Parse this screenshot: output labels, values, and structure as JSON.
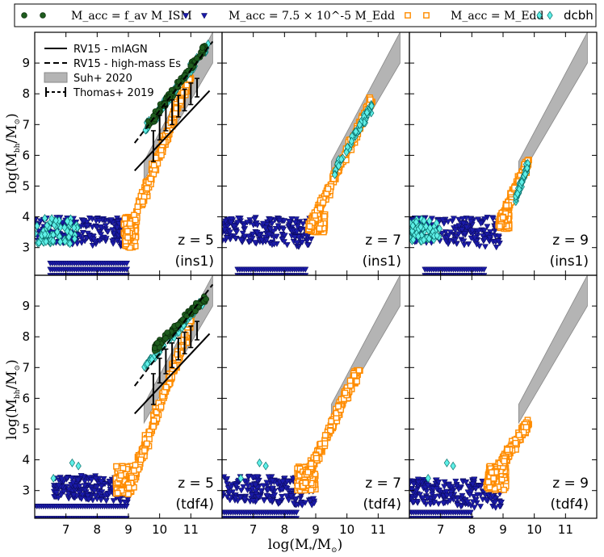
{
  "chart_data": {
    "type": "scatter",
    "layout": "2x3 panels, shared axes",
    "xlabel": "log(M*/M⊙)",
    "ylabel": "log(Mbh/M⊙)",
    "xlim": [
      6,
      12
    ],
    "ylim": [
      2.1,
      10
    ],
    "x_ticks": [
      "7",
      "8",
      "9",
      "10",
      "11"
    ],
    "y_ticks": [
      "3",
      "4",
      "5",
      "6",
      "7",
      "8",
      "9"
    ],
    "top_legend": [
      {
        "label": "M_acc = f_av M_ISM",
        "marker": "circle",
        "color": "#1b5e20"
      },
      {
        "label": "M_acc = 7.5 × 10^-5 M_Edd",
        "marker": "triangle-down",
        "color": "#1a1aa0"
      },
      {
        "label": "M_acc = M_Edd",
        "marker": "open-square",
        "color": "#ff8c00"
      },
      {
        "label": "dcbh",
        "marker": "diamond",
        "color": "#40e0d0"
      }
    ],
    "inner_legend": [
      {
        "label": "RV15 - mIAGN",
        "style": "solid line"
      },
      {
        "label": "RV15 - high-mass Es",
        "style": "dashed line"
      },
      {
        "label": "Suh+ 2020",
        "style": "grey band"
      },
      {
        "label": "Thomas+ 2019",
        "style": "error bars"
      }
    ],
    "reference_relations": {
      "RV15_mIAGN": {
        "x": [
          9.2,
          11.6
        ],
        "y": [
          5.5,
          8.1
        ]
      },
      "RV15_high_mass_Es": {
        "x": [
          9.2,
          11.7
        ],
        "y": [
          6.4,
          9.7
        ]
      },
      "Suh2020_band": {
        "x": [
          9.5,
          11.7
        ],
        "y_low": [
          5.2,
          9.0
        ],
        "y_high": [
          5.8,
          10.0
        ]
      },
      "Thomas2019": [
        {
          "x": 9.8,
          "y": 6.3,
          "err": 0.5
        },
        {
          "x": 10.0,
          "y": 6.9,
          "err": 0.4
        },
        {
          "x": 10.2,
          "y": 7.2,
          "err": 0.4
        },
        {
          "x": 10.4,
          "y": 7.4,
          "err": 0.4
        },
        {
          "x": 10.6,
          "y": 7.6,
          "err": 0.35
        },
        {
          "x": 10.8,
          "y": 7.8,
          "err": 0.35
        },
        {
          "x": 11.0,
          "y": 8.0,
          "err": 0.35
        },
        {
          "x": 11.2,
          "y": 8.2,
          "err": 0.3
        }
      ]
    },
    "panels": [
      {
        "id": "ins1_z5",
        "label_z": "z = 5",
        "label_model": "(ins1)",
        "show_relations": true,
        "show_band": true,
        "edd_slope": {
          "x": [
            8.9,
            11.0
          ],
          "y": [
            3.2,
            8.6
          ]
        },
        "edd_spread": 0.4,
        "bulk": {
          "x": [
            8.85,
            9.25
          ],
          "y": [
            3.0,
            4.0
          ]
        },
        "green_band": {
          "x": [
            9.6,
            11.5
          ],
          "y": [
            6.9,
            9.6
          ]
        },
        "cyan_band": {
          "x": [
            9.5,
            11.6
          ],
          "y": [
            6.8,
            9.6
          ]
        },
        "dcbh_blob": {
          "x": [
            6.0,
            7.4
          ],
          "y": [
            3.1,
            4.0
          ]
        },
        "lowmass_blue": {
          "x": [
            6.0,
            8.9
          ],
          "ymin": 3.0,
          "ymax": 4.0
        },
        "floor_blue": {
          "x": [
            6.5,
            9.0
          ],
          "levels": [
            2.1,
            2.3,
            2.5
          ]
        },
        "dcbh_count": 30
      },
      {
        "id": "ins1_z7",
        "label_z": "z = 7",
        "label_model": "(ins1)",
        "show_relations": false,
        "show_band": true,
        "edd_slope": {
          "x": [
            8.8,
            10.8
          ],
          "y": [
            3.6,
            7.8
          ]
        },
        "edd_spread": 0.3,
        "bulk": {
          "x": [
            8.9,
            9.3
          ],
          "y": [
            3.5,
            4.1
          ]
        },
        "green_band": null,
        "cyan_band": {
          "x": [
            9.6,
            10.8
          ],
          "y": [
            5.5,
            7.6
          ]
        },
        "dcbh_blob": null,
        "lowmass_blue": {
          "x": [
            6.0,
            8.9
          ],
          "ymin": 3.0,
          "ymax": 4.0
        },
        "floor_blue": {
          "x": [
            6.5,
            8.7
          ],
          "levels": [
            2.1,
            2.3
          ]
        },
        "dcbh_count": 10
      },
      {
        "id": "ins1_z9",
        "label_z": "z = 9",
        "label_model": "(ins1)",
        "show_relations": false,
        "show_band": true,
        "edd_slope": {
          "x": [
            8.9,
            9.8
          ],
          "y": [
            3.8,
            5.8
          ]
        },
        "edd_spread": 0.25,
        "bulk": {
          "x": [
            8.9,
            9.2
          ],
          "y": [
            3.6,
            4.1
          ]
        },
        "green_band": null,
        "cyan_band": {
          "x": [
            9.4,
            9.8
          ],
          "y": [
            4.6,
            5.7
          ]
        },
        "dcbh_blob": {
          "x": [
            6.0,
            7.0
          ],
          "y": [
            3.2,
            4.0
          ]
        },
        "lowmass_blue": {
          "x": [
            6.0,
            8.9
          ],
          "ymin": 3.0,
          "ymax": 4.0
        },
        "floor_blue": {
          "x": [
            6.5,
            8.4
          ],
          "levels": [
            2.1,
            2.3
          ]
        },
        "dcbh_count": 25
      },
      {
        "id": "tdf4_z5",
        "label_z": "z = 5",
        "label_model": "(tdf4)",
        "show_relations": true,
        "show_band": true,
        "edd_slope": {
          "x": [
            9.0,
            11.0
          ],
          "y": [
            3.0,
            8.5
          ]
        },
        "edd_spread": 0.4,
        "bulk": {
          "x": [
            8.6,
            9.1
          ],
          "y": [
            2.9,
            3.8
          ]
        },
        "green_band": {
          "x": [
            9.8,
            11.5
          ],
          "y": [
            7.6,
            9.3
          ]
        },
        "cyan_band": {
          "x": [
            9.5,
            11.4
          ],
          "y": [
            7.0,
            9.2
          ]
        },
        "dcbh_blob": null,
        "lowmass_blue": {
          "x": [
            6.6,
            9.0
          ],
          "ymin": 2.6,
          "ymax": 3.5
        },
        "floor_blue": {
          "x": [
            6.0,
            9.0
          ],
          "levels": [
            2.1,
            2.5
          ]
        },
        "dcbh_count": 6
      },
      {
        "id": "tdf4_z7",
        "label_z": "z = 7",
        "label_model": "(tdf4)",
        "show_relations": false,
        "show_band": true,
        "edd_slope": {
          "x": [
            8.6,
            10.4
          ],
          "y": [
            3.2,
            7.0
          ]
        },
        "edd_spread": 0.35,
        "bulk": {
          "x": [
            8.4,
            9.0
          ],
          "y": [
            3.0,
            3.8
          ]
        },
        "green_band": null,
        "cyan_band": null,
        "dcbh_blob": null,
        "lowmass_blue": {
          "x": [
            6.0,
            9.0
          ],
          "ymin": 2.5,
          "ymax": 3.5
        },
        "floor_blue": {
          "x": [
            6.0,
            8.4
          ],
          "levels": [
            2.1,
            2.3
          ]
        },
        "dcbh_count": 4
      },
      {
        "id": "tdf4_z9",
        "label_z": "z = 9",
        "label_model": "(tdf4)",
        "show_relations": false,
        "show_band": true,
        "edd_slope": {
          "x": [
            8.5,
            9.8
          ],
          "y": [
            3.2,
            5.2
          ]
        },
        "edd_spread": 0.3,
        "bulk": {
          "x": [
            8.5,
            9.1
          ],
          "y": [
            3.0,
            3.8
          ]
        },
        "green_band": null,
        "cyan_band": null,
        "dcbh_blob": null,
        "lowmass_blue": {
          "x": [
            6.0,
            9.0
          ],
          "ymin": 2.4,
          "ymax": 3.4
        },
        "floor_blue": {
          "x": [
            6.0,
            8.0
          ],
          "levels": [
            2.1,
            2.3
          ]
        },
        "dcbh_count": 4
      }
    ]
  }
}
